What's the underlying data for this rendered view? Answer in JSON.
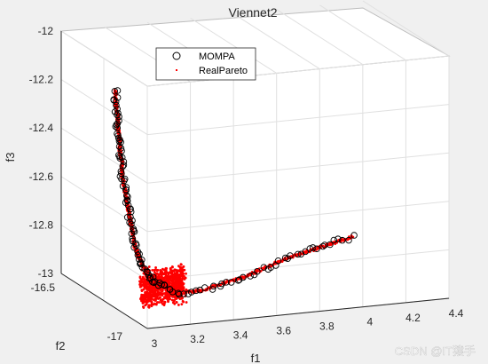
{
  "chart_data": {
    "type": "scatter",
    "title": "Viennet2",
    "xlabel": "f1",
    "ylabel": "f2",
    "zlabel": "f3",
    "x_ticks": [
      "3",
      "3.2",
      "3.4",
      "3.6",
      "3.8",
      "4",
      "4.2",
      "4.4"
    ],
    "y_ticks": [
      "-16.5",
      "-17"
    ],
    "z_ticks": [
      "-12",
      "-12.2",
      "-12.4",
      "-12.6",
      "-12.8",
      "-13"
    ],
    "xlim": [
      3,
      4.4
    ],
    "ylim": [
      -17,
      -16.5
    ],
    "zlim": [
      -13,
      -12
    ],
    "grid": true,
    "legend_position": "top-center",
    "series": [
      {
        "name": "MOMPA",
        "marker": "circle",
        "color": "#000000",
        "front_vertical": [
          [
            3.1,
            -12.16
          ],
          [
            3.1,
            -12.21
          ],
          [
            3.11,
            -12.26
          ],
          [
            3.11,
            -12.31
          ],
          [
            3.12,
            -12.36
          ],
          [
            3.12,
            -12.41
          ],
          [
            3.13,
            -12.46
          ],
          [
            3.13,
            -12.51
          ],
          [
            3.14,
            -12.56
          ],
          [
            3.15,
            -12.61
          ],
          [
            3.16,
            -12.66
          ],
          [
            3.17,
            -12.71
          ],
          [
            3.18,
            -12.76
          ],
          [
            3.19,
            -12.81
          ],
          [
            3.21,
            -12.86
          ],
          [
            3.23,
            -12.9
          ],
          [
            3.26,
            -12.94
          ],
          [
            3.29,
            -12.97
          ],
          [
            3.33,
            -12.99
          ]
        ],
        "front_horizontal": [
          [
            3.4,
            -13.02
          ],
          [
            3.5,
            -13.02
          ],
          [
            3.6,
            -13.0
          ],
          [
            3.7,
            -12.98
          ],
          [
            3.8,
            -12.95
          ],
          [
            3.9,
            -12.92
          ],
          [
            4.0,
            -12.9
          ],
          [
            4.1,
            -12.88
          ],
          [
            4.2,
            -12.86
          ]
        ]
      },
      {
        "name": "RealPareto",
        "marker": "dot",
        "color": "#ff0000"
      }
    ]
  },
  "watermark": "CSDN @IT猿手"
}
